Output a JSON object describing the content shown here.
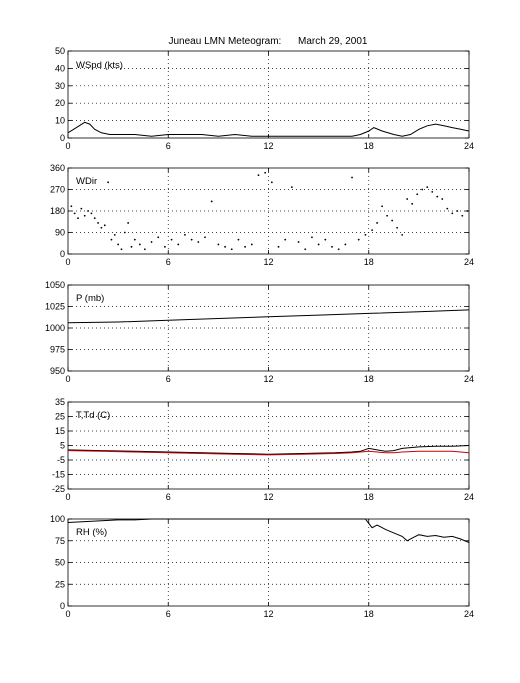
{
  "title": "Juneau LMN Meteogram:      March 29, 2001",
  "chart_data": [
    {
      "type": "line",
      "label": "WSpd (kts)",
      "x_ticks": [
        "0",
        "6",
        "12",
        "18",
        "24"
      ],
      "xlim": [
        0,
        24
      ],
      "ylim": [
        0,
        50
      ],
      "y_ticks": [
        "0",
        "10",
        "20",
        "30",
        "40",
        "50"
      ],
      "grid": true,
      "series": [
        {
          "color": "#000000",
          "x": [
            0,
            0.5,
            1,
            1.3,
            1.6,
            2,
            2.5,
            3,
            4,
            5,
            6,
            7,
            8,
            9,
            10,
            11,
            12,
            13,
            14,
            15,
            16,
            17,
            17.5,
            18,
            18.3,
            18.8,
            19.5,
            20,
            20.5,
            21,
            21.5,
            22,
            22.5,
            23,
            23.5,
            24
          ],
          "y": [
            3,
            6,
            9,
            8,
            5,
            3,
            2,
            2,
            2,
            1,
            2,
            2,
            2,
            1,
            2,
            1,
            1,
            1,
            1,
            1,
            1,
            1,
            2,
            4,
            6,
            4,
            2,
            1,
            2,
            5,
            7,
            8,
            7,
            6,
            5,
            4
          ]
        }
      ]
    },
    {
      "type": "scatter",
      "label": "WDir",
      "x_ticks": [
        "0",
        "6",
        "12",
        "18",
        "24"
      ],
      "xlim": [
        0,
        24
      ],
      "ylim": [
        0,
        360
      ],
      "y_ticks": [
        "0",
        "90",
        "180",
        "270",
        "360"
      ],
      "grid": true,
      "series": [
        {
          "color": "#000000",
          "x": [
            0.2,
            0.4,
            0.6,
            0.8,
            1.0,
            1.2,
            1.4,
            1.6,
            1.8,
            2.0,
            2.2,
            2.4,
            2.6,
            2.8,
            3.0,
            3.2,
            3.4,
            3.6,
            3.8,
            4.0,
            4.3,
            4.6,
            5.0,
            5.4,
            5.8,
            6.2,
            6.6,
            7.0,
            7.4,
            7.8,
            8.2,
            8.6,
            9.0,
            9.4,
            9.8,
            10.2,
            10.6,
            11.0,
            11.4,
            11.8,
            12.2,
            12.6,
            13.0,
            13.4,
            13.8,
            14.2,
            14.6,
            15.0,
            15.4,
            15.8,
            16.2,
            16.6,
            17.0,
            17.4,
            17.8,
            18.2,
            18.5,
            18.8,
            19.1,
            19.4,
            19.7,
            20.0,
            20.3,
            20.6,
            20.9,
            21.2,
            21.5,
            21.8,
            22.1,
            22.4,
            22.7,
            23.0,
            23.3,
            23.6,
            23.9
          ],
          "y": [
            200,
            170,
            150,
            190,
            160,
            180,
            170,
            150,
            130,
            110,
            120,
            300,
            60,
            80,
            40,
            20,
            90,
            130,
            30,
            60,
            40,
            20,
            50,
            70,
            30,
            60,
            40,
            80,
            60,
            50,
            70,
            220,
            40,
            30,
            20,
            60,
            30,
            40,
            330,
            340,
            300,
            30,
            60,
            280,
            50,
            20,
            70,
            40,
            60,
            30,
            20,
            40,
            320,
            60,
            80,
            100,
            130,
            200,
            160,
            140,
            110,
            80,
            230,
            210,
            250,
            270,
            280,
            260,
            240,
            230,
            190,
            170,
            180,
            160,
            180
          ]
        }
      ]
    },
    {
      "type": "line",
      "label": "P (mb)",
      "x_ticks": [
        "0",
        "6",
        "12",
        "18",
        "24"
      ],
      "xlim": [
        0,
        24
      ],
      "ylim": [
        950,
        1050
      ],
      "y_ticks": [
        "950",
        "975",
        "1000",
        "1025",
        "1050"
      ],
      "grid": true,
      "series": [
        {
          "color": "#000000",
          "x": [
            0,
            3,
            6,
            9,
            12,
            15,
            18,
            21,
            24
          ],
          "y": [
            1006,
            1007,
            1009,
            1011,
            1013,
            1015,
            1017,
            1019,
            1021
          ]
        }
      ]
    },
    {
      "type": "line",
      "label": "T,Td (C)",
      "x_ticks": [
        "0",
        "6",
        "12",
        "18",
        "24"
      ],
      "xlim": [
        0,
        24
      ],
      "ylim": [
        -25,
        35
      ],
      "y_ticks": [
        "-25",
        "-15",
        "-5",
        "5",
        "15",
        "25",
        "35"
      ],
      "grid": true,
      "series": [
        {
          "color": "#000000",
          "x": [
            0,
            2,
            4,
            6,
            8,
            10,
            12,
            14,
            16,
            17,
            17.5,
            18,
            18.5,
            19,
            19.5,
            20,
            21,
            22,
            23,
            24
          ],
          "y": [
            2,
            1.5,
            1,
            0.5,
            0,
            -0.5,
            -1,
            -0.5,
            0,
            0.5,
            1,
            3,
            2,
            1,
            1.5,
            3,
            4,
            4.5,
            4.5,
            5
          ]
        },
        {
          "color": "#cc0000",
          "x": [
            0,
            2,
            4,
            6,
            8,
            10,
            12,
            14,
            16,
            17,
            17.5,
            18,
            18.5,
            19,
            19.5,
            20,
            21,
            22,
            23,
            24
          ],
          "y": [
            1.5,
            1,
            0.5,
            0,
            -0.5,
            -1,
            -1.5,
            -1,
            -0.5,
            0,
            0.5,
            1,
            0.5,
            0,
            0,
            0.5,
            1,
            1,
            1,
            0
          ]
        }
      ]
    },
    {
      "type": "line",
      "label": "RH (%)",
      "x_ticks": [
        "0",
        "6",
        "12",
        "18",
        "24"
      ],
      "xlim": [
        0,
        24
      ],
      "ylim": [
        0,
        100
      ],
      "y_ticks": [
        "0",
        "25",
        "50",
        "75",
        "100"
      ],
      "grid": true,
      "series": [
        {
          "color": "#000000",
          "x": [
            0,
            1,
            2,
            3,
            4,
            5,
            5.5,
            17.8,
            18,
            18.2,
            18.5,
            19,
            19.5,
            20,
            20.3,
            20.6,
            21,
            21.5,
            22,
            22.5,
            23,
            23.5,
            24
          ],
          "y": [
            96,
            97,
            98,
            99,
            99,
            100,
            100,
            100,
            95,
            90,
            93,
            88,
            84,
            80,
            75,
            78,
            82,
            80,
            81,
            79,
            80,
            77,
            73
          ]
        }
      ]
    }
  ]
}
